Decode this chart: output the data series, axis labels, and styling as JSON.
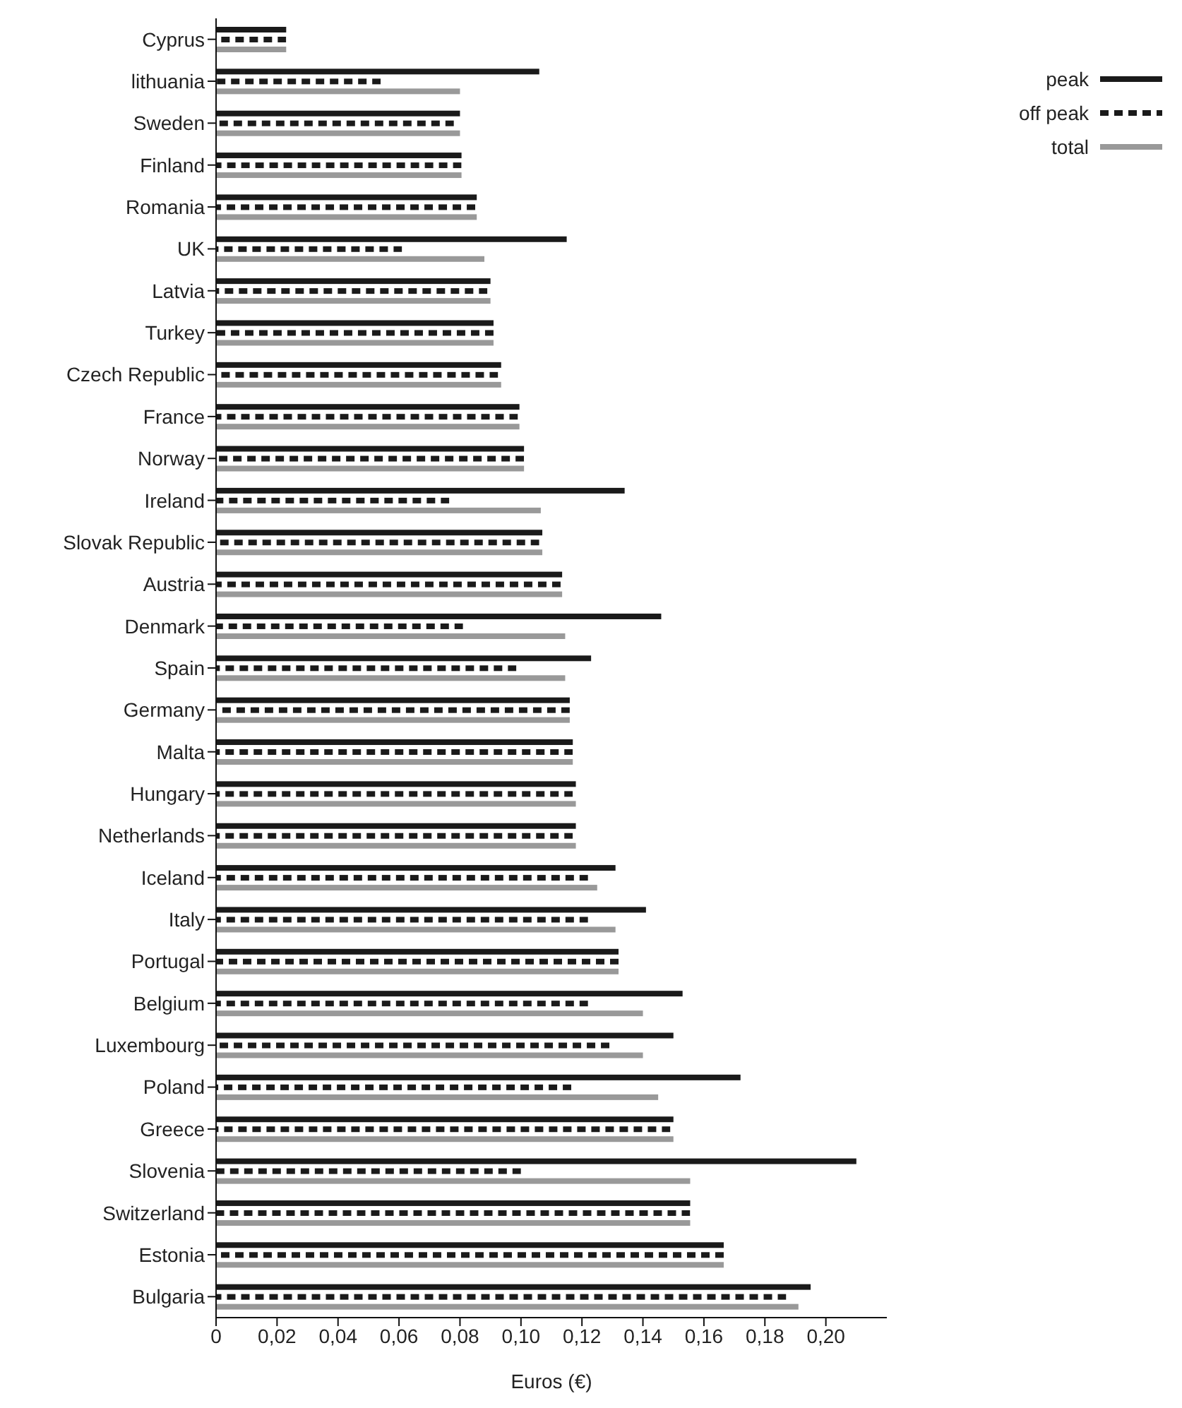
{
  "chart_data": {
    "type": "bar",
    "orientation": "horizontal",
    "xlabel": "Euros (€)",
    "categories": [
      "Cyprus",
      "lithuania",
      "Sweden",
      "Finland",
      "Romania",
      "UK",
      "Latvia",
      "Turkey",
      "Czech Republic",
      "France",
      "Norway",
      "Ireland",
      "Slovak Republic",
      "Austria",
      "Denmark",
      "Spain",
      "Germany",
      "Malta",
      "Hungary",
      "Netherlands",
      "Iceland",
      "Italy",
      "Portugal",
      "Belgium",
      "Luxembourg",
      "Poland",
      "Greece",
      "Slovenia",
      "Switzerland",
      "Estonia",
      "Bulgaria"
    ],
    "series": [
      {
        "name": "peak",
        "color": "#1a1a1a",
        "line_style": "solid",
        "values": [
          0.023,
          0.106,
          0.08,
          0.0805,
          0.0855,
          0.115,
          0.09,
          0.091,
          0.0935,
          0.0995,
          0.101,
          0.134,
          0.107,
          0.1135,
          0.146,
          0.123,
          0.116,
          0.117,
          0.118,
          0.118,
          0.131,
          0.141,
          0.132,
          0.153,
          0.15,
          0.172,
          0.15,
          0.21,
          0.1555,
          0.1665,
          0.195
        ]
      },
      {
        "name": "off peak",
        "color": "#1a1a1a",
        "line_style": "dashed",
        "values": [
          0.023,
          0.054,
          0.078,
          0.0805,
          0.085,
          0.061,
          0.089,
          0.091,
          0.0925,
          0.099,
          0.101,
          0.0765,
          0.106,
          0.113,
          0.081,
          0.0985,
          0.116,
          0.117,
          0.117,
          0.117,
          0.122,
          0.122,
          0.132,
          0.122,
          0.129,
          0.1165,
          0.149,
          0.1,
          0.1555,
          0.1665,
          0.187
        ]
      },
      {
        "name": "total",
        "color": "#999999",
        "line_style": "solid",
        "values": [
          0.023,
          0.08,
          0.08,
          0.0805,
          0.0855,
          0.088,
          0.09,
          0.091,
          0.0935,
          0.0995,
          0.101,
          0.1065,
          0.107,
          0.1135,
          0.1145,
          0.1145,
          0.116,
          0.117,
          0.118,
          0.118,
          0.125,
          0.131,
          0.132,
          0.14,
          0.14,
          0.145,
          0.15,
          0.1555,
          0.1555,
          0.1665,
          0.191
        ]
      }
    ],
    "xlim": [
      0,
      0.22
    ],
    "xticks": [
      0,
      {
        "value": 0.02,
        "label": "0,02"
      },
      {
        "value": 0.04,
        "label": "0,04"
      },
      {
        "value": 0.06,
        "label": "0,06"
      },
      {
        "value": 0.08,
        "label": "0,08"
      },
      {
        "value": 0.1,
        "label": "0,10"
      },
      {
        "value": 0.12,
        "label": "0,12"
      },
      {
        "value": 0.14,
        "label": "0,14"
      },
      {
        "value": 0.16,
        "label": "0,16"
      },
      {
        "value": 0.18,
        "label": "0,18"
      },
      {
        "value": 0.2,
        "label": "0,20"
      }
    ],
    "grid": false,
    "legend": "top right"
  }
}
